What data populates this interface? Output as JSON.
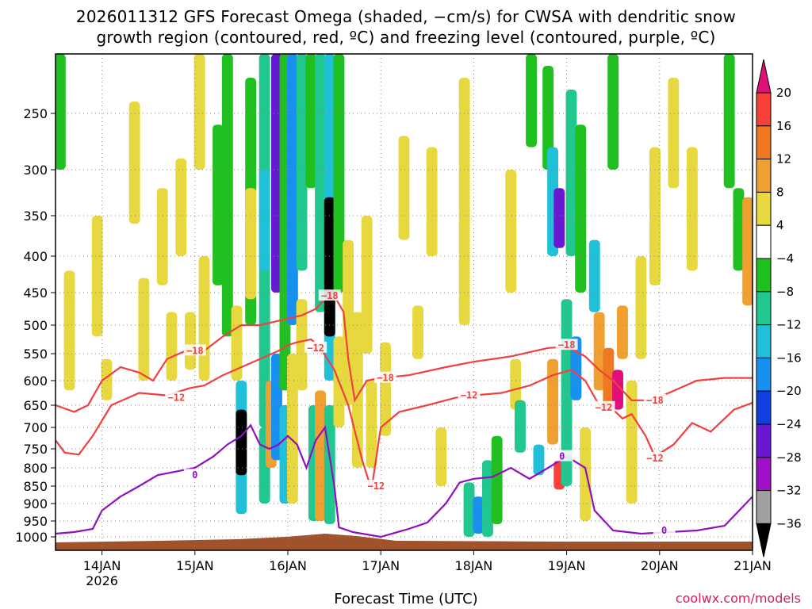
{
  "title": {
    "line1": "2026011312 GFS Forecast Omega (shaded, −cm/s) for CWSA with dendritic snow",
    "line2": "growth region (contoured, red, ºC) and freezing level (contoured, purple, ºC)"
  },
  "xlabel": "Forecast Time (UTC)",
  "credit": "coolwx.com/models",
  "colors": {
    "red_contour": "#f04040",
    "purple_contour": "#9010c0",
    "terrain": "#a0522d",
    "grid": "#888888"
  },
  "chart_data": {
    "type": "heatmap",
    "title": "2026011312 GFS Forecast Omega (shaded, −cm/s) for CWSA with dendritic snow growth region (contoured, red, ºC) and freezing level (contoured, purple, ºC)",
    "xlabel": "Forecast Time (UTC)",
    "ylabel": "",
    "x_ticks": [
      "14JAN",
      "15JAN",
      "16JAN",
      "17JAN",
      "18JAN",
      "19JAN",
      "20JAN",
      "21JAN"
    ],
    "x_tick_year": "2026",
    "x_range_days": [
      13.5,
      21
    ],
    "y_ticks": [
      250,
      300,
      350,
      400,
      450,
      500,
      550,
      600,
      650,
      700,
      750,
      800,
      850,
      900,
      950,
      1000
    ],
    "y_range_hpa": [
      200,
      1020
    ],
    "colorbar": {
      "labels": [
        "20",
        "16",
        "12",
        "8",
        "4",
        "−4",
        "−8",
        "−12",
        "−16",
        "−20",
        "−24",
        "−28",
        "−32",
        "−36"
      ],
      "bins": [
        {
          "min": 20,
          "max": null,
          "color": "#e0107a"
        },
        {
          "min": 16,
          "max": 20,
          "color": "#f84038"
        },
        {
          "min": 12,
          "max": 16,
          "color": "#f07820"
        },
        {
          "min": 8,
          "max": 12,
          "color": "#f0a030"
        },
        {
          "min": 4,
          "max": 8,
          "color": "#e8d840"
        },
        {
          "min": -4,
          "max": 4,
          "color": "#ffffff"
        },
        {
          "min": -8,
          "max": -4,
          "color": "#20c020"
        },
        {
          "min": -12,
          "max": -8,
          "color": "#20c890"
        },
        {
          "min": -16,
          "max": -12,
          "color": "#20c0d8"
        },
        {
          "min": -20,
          "max": -16,
          "color": "#1890f0"
        },
        {
          "min": -24,
          "max": -20,
          "color": "#1040e0"
        },
        {
          "min": -28,
          "max": -24,
          "color": "#6818d0"
        },
        {
          "min": -32,
          "max": -28,
          "color": "#a010c8"
        },
        {
          "min": -36,
          "max": -32,
          "color": "#a0a0a0"
        },
        {
          "min": null,
          "max": -36,
          "color": "#000000"
        }
      ]
    },
    "omega_cells": [
      {
        "day": 13.55,
        "p0": 200,
        "p1": 300,
        "v": -6
      },
      {
        "day": 13.65,
        "p0": 420,
        "p1": 620,
        "v": 5
      },
      {
        "day": 13.95,
        "p0": 350,
        "p1": 520,
        "v": 5
      },
      {
        "day": 14.05,
        "p0": 560,
        "p1": 640,
        "v": 6
      },
      {
        "day": 14.35,
        "p0": 240,
        "p1": 360,
        "v": 5
      },
      {
        "day": 14.45,
        "p0": 430,
        "p1": 600,
        "v": 5
      },
      {
        "day": 14.65,
        "p0": 320,
        "p1": 440,
        "v": 5
      },
      {
        "day": 14.75,
        "p0": 480,
        "p1": 600,
        "v": 5
      },
      {
        "day": 14.85,
        "p0": 290,
        "p1": 400,
        "v": 5
      },
      {
        "day": 14.95,
        "p0": 480,
        "p1": 580,
        "v": 5
      },
      {
        "day": 15.05,
        "p0": 200,
        "p1": 300,
        "v": 5
      },
      {
        "day": 15.1,
        "p0": 400,
        "p1": 600,
        "v": 5
      },
      {
        "day": 15.25,
        "p0": 260,
        "p1": 440,
        "v": -6
      },
      {
        "day": 15.35,
        "p0": 200,
        "p1": 520,
        "v": -7
      },
      {
        "day": 15.45,
        "p0": 470,
        "p1": 600,
        "v": 5
      },
      {
        "day": 15.5,
        "p0": 600,
        "p1": 930,
        "v": -14
      },
      {
        "day": 15.5,
        "p0": 660,
        "p1": 820,
        "v": -40
      },
      {
        "day": 15.6,
        "p0": 220,
        "p1": 500,
        "v": -6
      },
      {
        "day": 15.6,
        "p0": 320,
        "p1": 460,
        "v": 5
      },
      {
        "day": 15.75,
        "p0": 200,
        "p1": 700,
        "v": -9
      },
      {
        "day": 15.75,
        "p0": 300,
        "p1": 420,
        "v": -16
      },
      {
        "day": 15.75,
        "p0": 700,
        "p1": 900,
        "v": -12
      },
      {
        "day": 15.82,
        "p0": 600,
        "p1": 800,
        "v": 10
      },
      {
        "day": 15.88,
        "p0": 200,
        "p1": 450,
        "v": -26
      },
      {
        "day": 15.88,
        "p0": 550,
        "p1": 780,
        "v": -18
      },
      {
        "day": 15.97,
        "p0": 200,
        "p1": 620,
        "v": -8
      },
      {
        "day": 15.97,
        "p0": 650,
        "p1": 900,
        "v": -14
      },
      {
        "day": 16.05,
        "p0": 200,
        "p1": 500,
        "v": -20
      },
      {
        "day": 16.05,
        "p0": 550,
        "p1": 900,
        "v": 6
      },
      {
        "day": 16.15,
        "p0": 200,
        "p1": 420,
        "v": -9
      },
      {
        "day": 16.15,
        "p0": 460,
        "p1": 620,
        "v": 5
      },
      {
        "day": 16.25,
        "p0": 200,
        "p1": 320,
        "v": -7
      },
      {
        "day": 16.28,
        "p0": 650,
        "p1": 950,
        "v": -12
      },
      {
        "day": 16.35,
        "p0": 200,
        "p1": 480,
        "v": -10
      },
      {
        "day": 16.35,
        "p0": 620,
        "p1": 950,
        "v": 8
      },
      {
        "day": 16.45,
        "p0": 200,
        "p1": 600,
        "v": -13
      },
      {
        "day": 16.45,
        "p0": 330,
        "p1": 520,
        "v": -40
      },
      {
        "day": 16.45,
        "p0": 650,
        "p1": 960,
        "v": -10
      },
      {
        "day": 16.55,
        "p0": 200,
        "p1": 450,
        "v": -6
      },
      {
        "day": 16.55,
        "p0": 520,
        "p1": 700,
        "v": 6
      },
      {
        "day": 16.65,
        "p0": 380,
        "p1": 650,
        "v": 5
      },
      {
        "day": 16.75,
        "p0": 480,
        "p1": 800,
        "v": 5
      },
      {
        "day": 16.85,
        "p0": 350,
        "p1": 550,
        "v": 5
      },
      {
        "day": 16.9,
        "p0": 600,
        "p1": 800,
        "v": 6
      },
      {
        "day": 17.05,
        "p0": 530,
        "p1": 720,
        "v": 5
      },
      {
        "day": 17.25,
        "p0": 270,
        "p1": 380,
        "v": 5
      },
      {
        "day": 17.4,
        "p0": 470,
        "p1": 560,
        "v": 5
      },
      {
        "day": 17.55,
        "p0": 280,
        "p1": 400,
        "v": 5
      },
      {
        "day": 17.65,
        "p0": 700,
        "p1": 850,
        "v": 5
      },
      {
        "day": 17.9,
        "p0": 220,
        "p1": 500,
        "v": 5
      },
      {
        "day": 17.95,
        "p0": 840,
        "p1": 1000,
        "v": -12
      },
      {
        "day": 18.05,
        "p0": 880,
        "p1": 990,
        "v": -20
      },
      {
        "day": 18.15,
        "p0": 780,
        "p1": 1000,
        "v": -9
      },
      {
        "day": 18.25,
        "p0": 720,
        "p1": 960,
        "v": -6
      },
      {
        "day": 18.4,
        "p0": 300,
        "p1": 450,
        "v": 5
      },
      {
        "day": 18.45,
        "p0": 560,
        "p1": 660,
        "v": 5
      },
      {
        "day": 18.5,
        "p0": 640,
        "p1": 760,
        "v": -10
      },
      {
        "day": 18.62,
        "p0": 200,
        "p1": 280,
        "v": -6
      },
      {
        "day": 18.7,
        "p0": 740,
        "p1": 820,
        "v": -14
      },
      {
        "day": 18.8,
        "p0": 210,
        "p1": 300,
        "v": -8
      },
      {
        "day": 18.85,
        "p0": 280,
        "p1": 400,
        "v": -16
      },
      {
        "day": 18.92,
        "p0": 320,
        "p1": 390,
        "v": -28
      },
      {
        "day": 18.85,
        "p0": 560,
        "p1": 740,
        "v": 10
      },
      {
        "day": 18.92,
        "p0": 780,
        "p1": 860,
        "v": 18
      },
      {
        "day": 19.0,
        "p0": 460,
        "p1": 850,
        "v": -12
      },
      {
        "day": 19.05,
        "p0": 230,
        "p1": 400,
        "v": -10
      },
      {
        "day": 19.1,
        "p0": 520,
        "p1": 640,
        "v": -18
      },
      {
        "day": 19.15,
        "p0": 260,
        "p1": 450,
        "v": -8
      },
      {
        "day": 19.2,
        "p0": 700,
        "p1": 950,
        "v": 6
      },
      {
        "day": 19.3,
        "p0": 380,
        "p1": 480,
        "v": -16
      },
      {
        "day": 19.35,
        "p0": 480,
        "p1": 620,
        "v": 10
      },
      {
        "day": 19.45,
        "p0": 540,
        "p1": 660,
        "v": 14
      },
      {
        "day": 19.55,
        "p0": 580,
        "p1": 660,
        "v": 22
      },
      {
        "day": 19.6,
        "p0": 470,
        "p1": 560,
        "v": 10
      },
      {
        "day": 19.5,
        "p0": 200,
        "p1": 300,
        "v": -6
      },
      {
        "day": 19.7,
        "p0": 600,
        "p1": 900,
        "v": 5
      },
      {
        "day": 19.8,
        "p0": 400,
        "p1": 560,
        "v": 5
      },
      {
        "day": 19.95,
        "p0": 280,
        "p1": 440,
        "v": 6
      },
      {
        "day": 20.15,
        "p0": 220,
        "p1": 320,
        "v": 5
      },
      {
        "day": 20.35,
        "p0": 280,
        "p1": 420,
        "v": 5
      },
      {
        "day": 20.75,
        "p0": 200,
        "p1": 320,
        "v": -6
      },
      {
        "day": 20.85,
        "p0": 320,
        "p1": 420,
        "v": -6
      },
      {
        "day": 20.95,
        "p0": 330,
        "p1": 470,
        "v": 10
      }
    ],
    "contours": [
      {
        "name": "-18",
        "color": "#f04040",
        "label": "−18",
        "label_at": [
          [
            15.0,
            545
          ],
          [
            16.45,
            455
          ],
          [
            17.05,
            595
          ],
          [
            19.0,
            535
          ],
          [
            19.95,
            640
          ]
        ],
        "points": [
          [
            13.5,
            650
          ],
          [
            13.7,
            665
          ],
          [
            13.85,
            650
          ],
          [
            14.0,
            600
          ],
          [
            14.2,
            575
          ],
          [
            14.4,
            585
          ],
          [
            14.55,
            600
          ],
          [
            14.7,
            560
          ],
          [
            14.9,
            545
          ],
          [
            15.1,
            545
          ],
          [
            15.3,
            520
          ],
          [
            15.5,
            500
          ],
          [
            15.7,
            500
          ],
          [
            15.85,
            495
          ],
          [
            16.0,
            490
          ],
          [
            16.15,
            485
          ],
          [
            16.3,
            475
          ],
          [
            16.4,
            460
          ],
          [
            16.5,
            455
          ],
          [
            16.6,
            480
          ],
          [
            16.65,
            560
          ],
          [
            16.72,
            640
          ],
          [
            16.85,
            600
          ],
          [
            17.0,
            595
          ],
          [
            17.3,
            590
          ],
          [
            17.7,
            575
          ],
          [
            18.0,
            565
          ],
          [
            18.4,
            555
          ],
          [
            18.8,
            540
          ],
          [
            19.0,
            538
          ],
          [
            19.2,
            555
          ],
          [
            19.35,
            580
          ],
          [
            19.5,
            600
          ],
          [
            19.6,
            620
          ],
          [
            19.7,
            640
          ],
          [
            19.9,
            640
          ],
          [
            20.1,
            625
          ],
          [
            20.4,
            600
          ],
          [
            20.7,
            595
          ],
          [
            21.0,
            595
          ]
        ]
      },
      {
        "name": "-12",
        "color": "#f04040",
        "label": "−12",
        "label_at": [
          [
            14.8,
            635
          ],
          [
            16.3,
            540
          ],
          [
            16.95,
            850
          ],
          [
            17.95,
            630
          ],
          [
            19.4,
            655
          ],
          [
            19.95,
            775
          ]
        ],
        "points": [
          [
            13.5,
            730
          ],
          [
            13.6,
            760
          ],
          [
            13.75,
            765
          ],
          [
            13.9,
            720
          ],
          [
            14.1,
            650
          ],
          [
            14.4,
            625
          ],
          [
            14.7,
            630
          ],
          [
            14.95,
            615
          ],
          [
            15.1,
            610
          ],
          [
            15.3,
            590
          ],
          [
            15.5,
            575
          ],
          [
            15.7,
            560
          ],
          [
            15.9,
            545
          ],
          [
            16.0,
            535
          ],
          [
            16.1,
            530
          ],
          [
            16.25,
            525
          ],
          [
            16.35,
            540
          ],
          [
            16.5,
            580
          ],
          [
            16.65,
            650
          ],
          [
            16.8,
            780
          ],
          [
            16.9,
            860
          ],
          [
            17.0,
            700
          ],
          [
            17.2,
            665
          ],
          [
            17.5,
            650
          ],
          [
            17.8,
            635
          ],
          [
            18.0,
            630
          ],
          [
            18.3,
            625
          ],
          [
            18.6,
            610
          ],
          [
            18.85,
            590
          ],
          [
            19.05,
            580
          ],
          [
            19.2,
            600
          ],
          [
            19.35,
            650
          ],
          [
            19.5,
            660
          ],
          [
            19.6,
            680
          ],
          [
            19.7,
            670
          ],
          [
            19.85,
            720
          ],
          [
            19.95,
            770
          ],
          [
            20.15,
            740
          ],
          [
            20.35,
            690
          ],
          [
            20.55,
            710
          ],
          [
            20.8,
            660
          ],
          [
            21.0,
            645
          ]
        ]
      },
      {
        "name": "0",
        "color": "#9010c0",
        "label": "0",
        "label_at": [
          [
            15.0,
            820
          ],
          [
            18.95,
            770
          ],
          [
            20.05,
            980
          ]
        ],
        "points": [
          [
            13.5,
            990
          ],
          [
            13.7,
            985
          ],
          [
            13.9,
            975
          ],
          [
            14.0,
            920
          ],
          [
            14.2,
            880
          ],
          [
            14.4,
            850
          ],
          [
            14.6,
            820
          ],
          [
            14.8,
            810
          ],
          [
            15.0,
            800
          ],
          [
            15.2,
            770
          ],
          [
            15.35,
            740
          ],
          [
            15.5,
            720
          ],
          [
            15.6,
            695
          ],
          [
            15.7,
            740
          ],
          [
            15.8,
            750
          ],
          [
            15.9,
            740
          ],
          [
            16.0,
            720
          ],
          [
            16.1,
            740
          ],
          [
            16.2,
            800
          ],
          [
            16.3,
            730
          ],
          [
            16.4,
            700
          ],
          [
            16.5,
            850
          ],
          [
            16.55,
            970
          ],
          [
            16.7,
            985
          ],
          [
            17.0,
            1000
          ],
          [
            17.3,
            975
          ],
          [
            17.5,
            955
          ],
          [
            17.7,
            900
          ],
          [
            17.85,
            840
          ],
          [
            18.0,
            830
          ],
          [
            18.2,
            825
          ],
          [
            18.4,
            800
          ],
          [
            18.6,
            830
          ],
          [
            18.8,
            800
          ],
          [
            19.0,
            770
          ],
          [
            19.2,
            800
          ],
          [
            19.3,
            920
          ],
          [
            19.5,
            980
          ],
          [
            19.8,
            990
          ],
          [
            20.1,
            985
          ],
          [
            20.4,
            980
          ],
          [
            20.7,
            965
          ],
          [
            21.0,
            880
          ]
        ]
      }
    ]
  }
}
